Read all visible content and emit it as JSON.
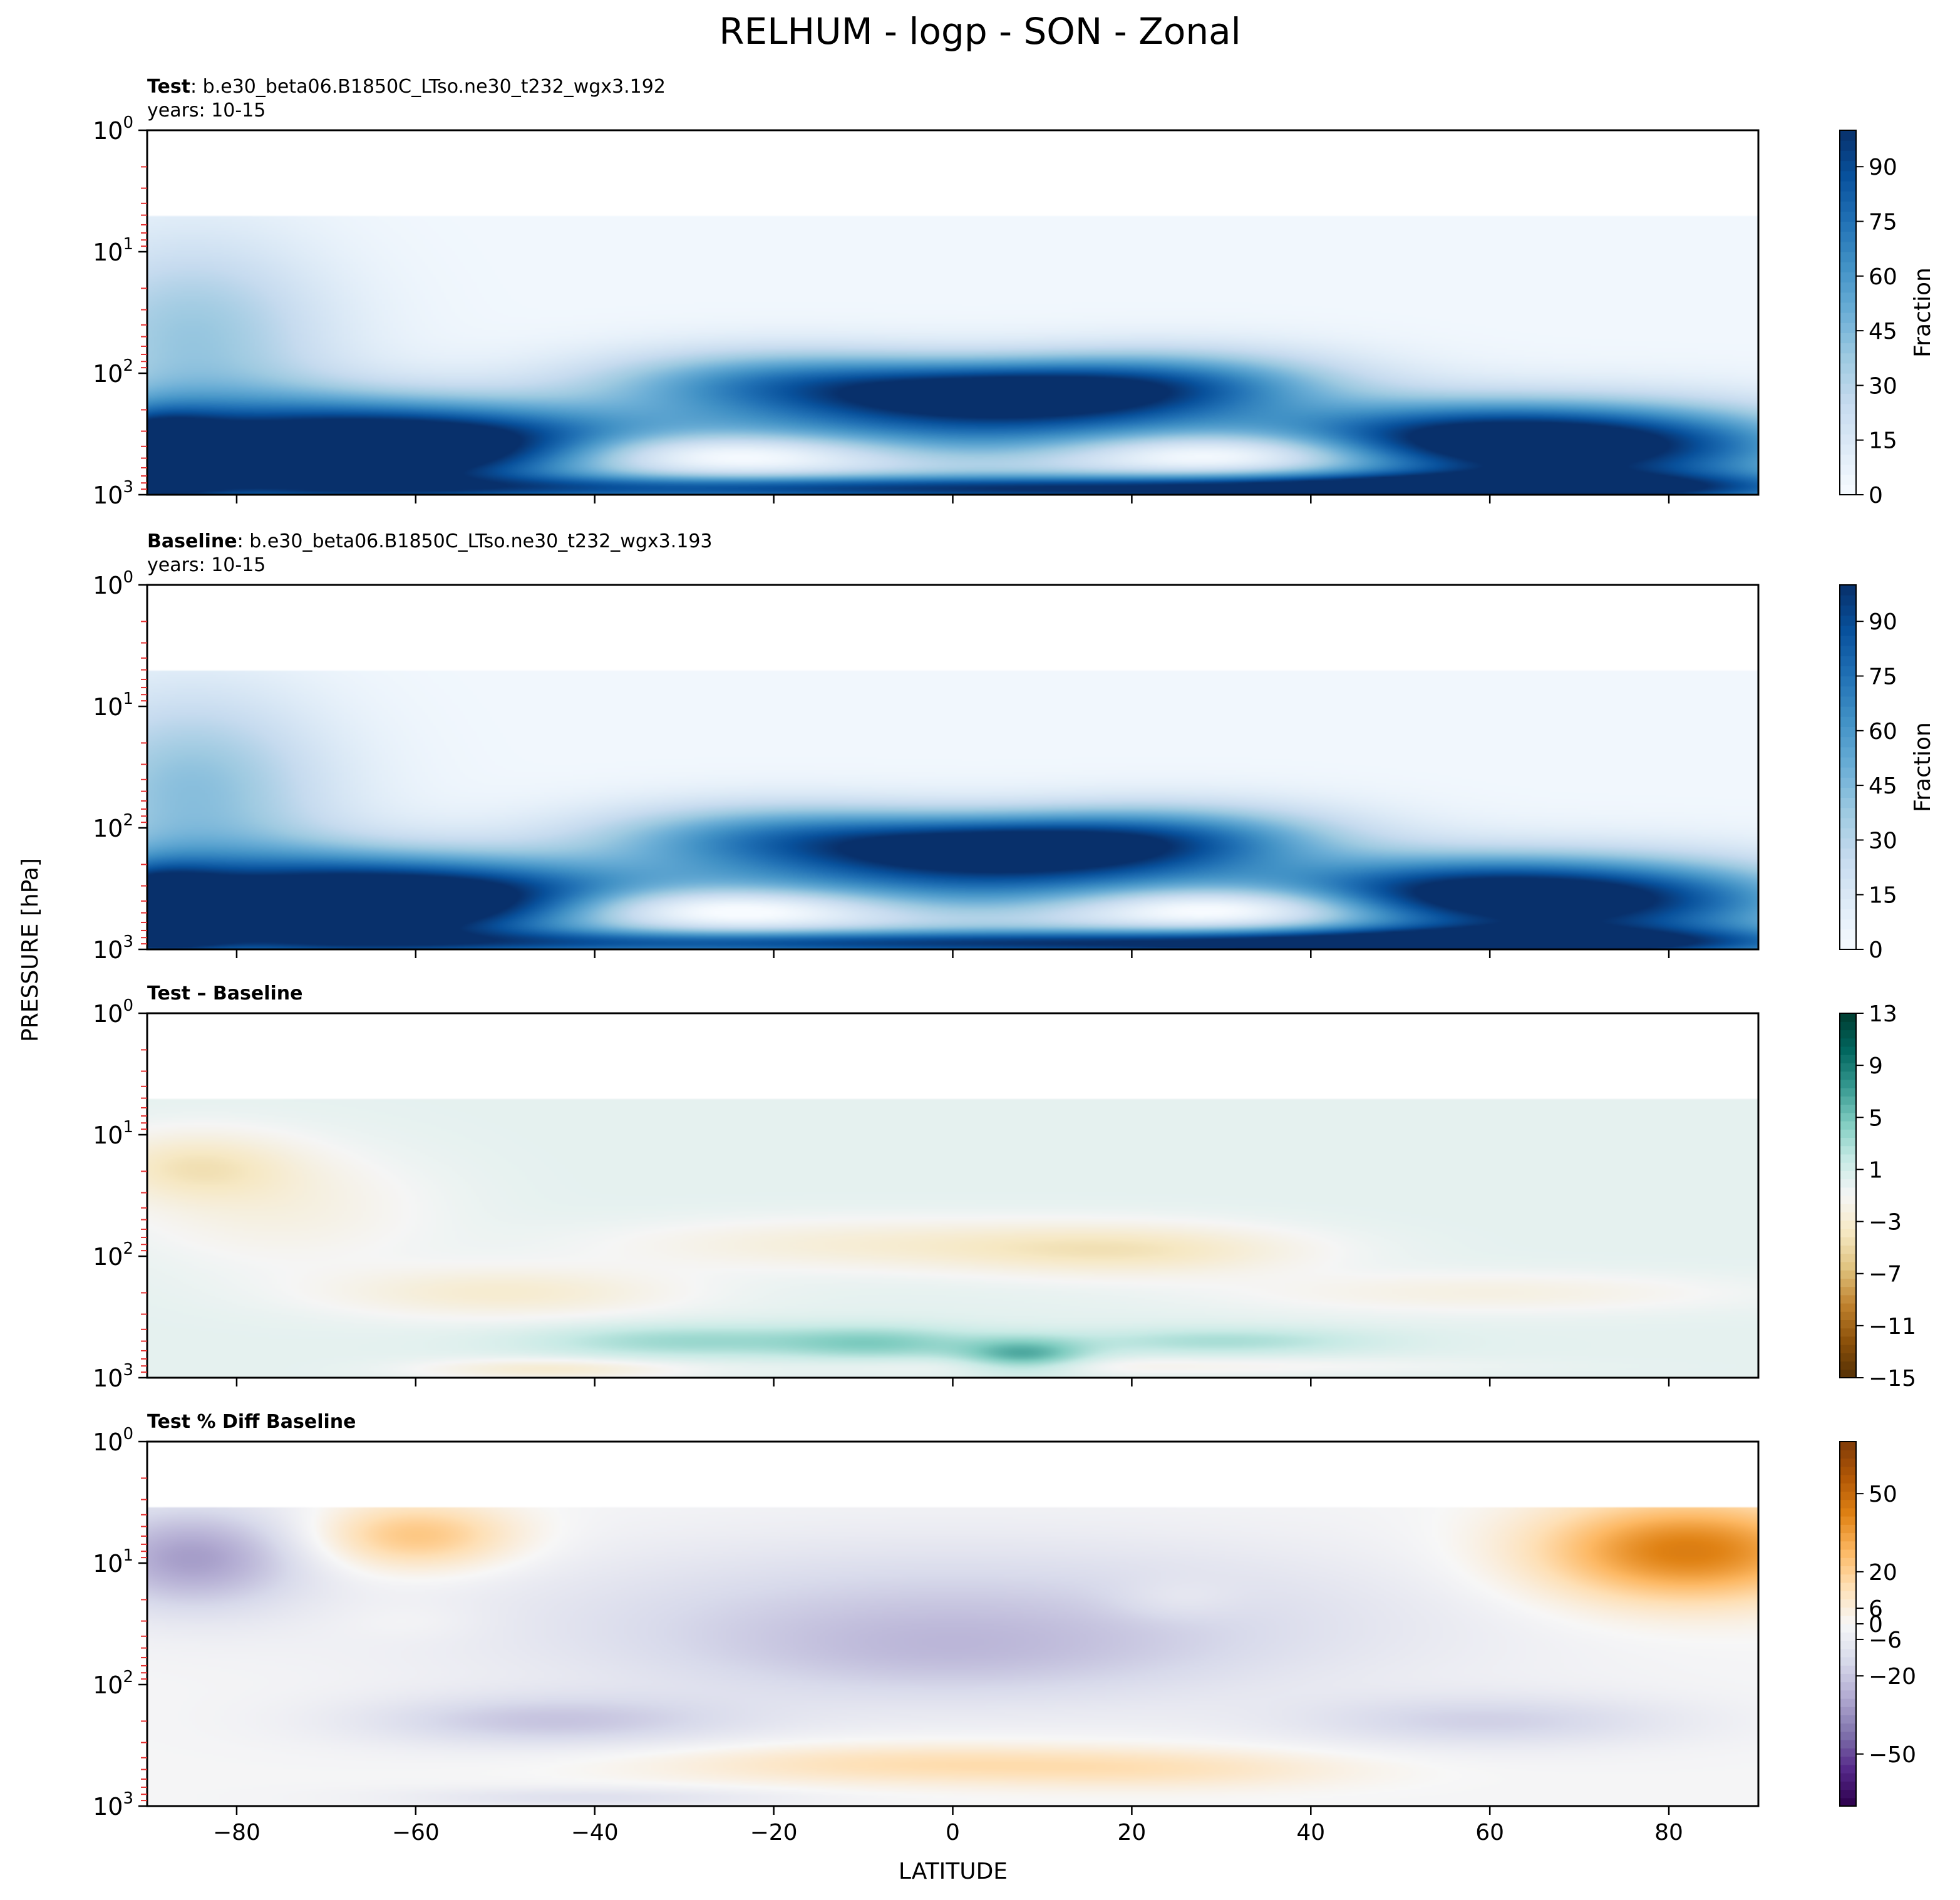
{
  "figure": {
    "title": "RELHUM - logp - SON - Zonal",
    "xlabel": "LATITUDE",
    "ylabel": "PRESSURE [hPa]"
  },
  "chart_data": [
    {
      "type": "heatmap",
      "panel": "test",
      "title_bold": "Test",
      "title_rest": ": b.e30_beta06.B1850C_LTso.ne30_t232_wgx3.192",
      "subtitle": "years: 10-15",
      "colorbar_label": "Fraction",
      "colorbar_ticks": [
        "0",
        "15",
        "30",
        "45",
        "60",
        "75",
        "90"
      ],
      "colorbar_range": [
        0,
        100
      ],
      "colormap": [
        "#f7fbff",
        "#deebf7",
        "#c6dbef",
        "#9ecae1",
        "#6baed6",
        "#4292c6",
        "#2171b5",
        "#08519c",
        "#08306b"
      ],
      "xlim": [
        -90,
        90
      ],
      "ylim_hPa": [
        1000,
        1
      ],
      "y_scale": "log",
      "x_ticks": [
        -80,
        -60,
        -40,
        -20,
        0,
        20,
        40,
        60,
        80
      ],
      "y_ticks": [
        {
          "base": "10",
          "exp": "0"
        },
        {
          "base": "10",
          "exp": "1"
        },
        {
          "base": "10",
          "exp": "2"
        },
        {
          "base": "10",
          "exp": "3"
        }
      ],
      "background_value": 3,
      "data_top_hPa": 5,
      "features": [
        {
          "lat": -90,
          "p": 500,
          "value": 95,
          "sx": 6,
          "sy": 0.25
        },
        {
          "lat": -75,
          "p": 450,
          "value": 85,
          "sx": 14,
          "sy": 0.3
        },
        {
          "lat": -55,
          "p": 400,
          "value": 80,
          "sx": 14,
          "sy": 0.25
        },
        {
          "lat": -85,
          "p": 80,
          "value": 25,
          "sx": 12,
          "sy": 0.55
        },
        {
          "lat": -85,
          "p": 25,
          "value": 15,
          "sx": 10,
          "sy": 0.5
        },
        {
          "lat": 5,
          "p": 150,
          "value": 85,
          "sx": 15,
          "sy": 0.18
        },
        {
          "lat": -20,
          "p": 120,
          "value": 55,
          "sx": 15,
          "sy": 0.2
        },
        {
          "lat": 25,
          "p": 120,
          "value": 55,
          "sx": 14,
          "sy": 0.2
        },
        {
          "lat": -25,
          "p": 450,
          "value": -45,
          "sx": 14,
          "sy": 0.12
        },
        {
          "lat": 30,
          "p": 450,
          "value": -45,
          "sx": 13,
          "sy": 0.12
        },
        {
          "lat": 0,
          "p": 350,
          "value": 55,
          "sx": 35,
          "sy": 0.2
        },
        {
          "lat": 75,
          "p": 400,
          "value": 85,
          "sx": 16,
          "sy": 0.25
        },
        {
          "lat": 55,
          "p": 350,
          "value": 60,
          "sx": 14,
          "sy": 0.22
        },
        {
          "lat": -10,
          "p": 900,
          "value": 80,
          "sx": 45,
          "sy": 0.08
        },
        {
          "lat": 60,
          "p": 900,
          "value": 80,
          "sx": 30,
          "sy": 0.1
        }
      ]
    },
    {
      "type": "heatmap",
      "panel": "baseline",
      "title_bold": "Baseline",
      "title_rest": ": b.e30_beta06.B1850C_LTso.ne30_t232_wgx3.193",
      "subtitle": "years: 10-15",
      "colorbar_label": "Fraction",
      "colorbar_ticks": [
        "0",
        "15",
        "30",
        "45",
        "60",
        "75",
        "90"
      ],
      "colorbar_range": [
        0,
        100
      ],
      "colormap": [
        "#f7fbff",
        "#deebf7",
        "#c6dbef",
        "#9ecae1",
        "#6baed6",
        "#4292c6",
        "#2171b5",
        "#08519c",
        "#08306b"
      ],
      "xlim": [
        -90,
        90
      ],
      "ylim_hPa": [
        1000,
        1
      ],
      "y_scale": "log",
      "x_ticks": [
        -80,
        -60,
        -40,
        -20,
        0,
        20,
        40,
        60,
        80
      ],
      "y_ticks": [
        {
          "base": "10",
          "exp": "0"
        },
        {
          "base": "10",
          "exp": "1"
        },
        {
          "base": "10",
          "exp": "2"
        },
        {
          "base": "10",
          "exp": "3"
        }
      ],
      "background_value": 3,
      "data_top_hPa": 5,
      "features": [
        {
          "lat": -90,
          "p": 500,
          "value": 92,
          "sx": 6,
          "sy": 0.25
        },
        {
          "lat": -75,
          "p": 450,
          "value": 83,
          "sx": 14,
          "sy": 0.3
        },
        {
          "lat": -55,
          "p": 400,
          "value": 80,
          "sx": 14,
          "sy": 0.25
        },
        {
          "lat": -85,
          "p": 80,
          "value": 27,
          "sx": 12,
          "sy": 0.55
        },
        {
          "lat": -85,
          "p": 25,
          "value": 17,
          "sx": 10,
          "sy": 0.5
        },
        {
          "lat": 5,
          "p": 150,
          "value": 85,
          "sx": 15,
          "sy": 0.18
        },
        {
          "lat": -20,
          "p": 120,
          "value": 55,
          "sx": 15,
          "sy": 0.2
        },
        {
          "lat": 25,
          "p": 120,
          "value": 55,
          "sx": 14,
          "sy": 0.2
        },
        {
          "lat": -25,
          "p": 450,
          "value": -48,
          "sx": 14,
          "sy": 0.12
        },
        {
          "lat": 30,
          "p": 450,
          "value": -48,
          "sx": 13,
          "sy": 0.12
        },
        {
          "lat": 0,
          "p": 350,
          "value": 55,
          "sx": 35,
          "sy": 0.2
        },
        {
          "lat": 75,
          "p": 400,
          "value": 80,
          "sx": 16,
          "sy": 0.25
        },
        {
          "lat": 55,
          "p": 350,
          "value": 60,
          "sx": 14,
          "sy": 0.22
        },
        {
          "lat": -10,
          "p": 900,
          "value": 78,
          "sx": 45,
          "sy": 0.08
        },
        {
          "lat": 60,
          "p": 900,
          "value": 78,
          "sx": 30,
          "sy": 0.1
        }
      ]
    },
    {
      "type": "heatmap",
      "panel": "diff",
      "title_bold": "Test – Baseline",
      "title_rest": "",
      "subtitle": "",
      "colorbar_label": "",
      "colorbar_ticks": [
        "-15",
        "-11",
        "-7",
        "-3",
        "1",
        "5",
        "9",
        "13"
      ],
      "colorbar_range": [
        -15,
        13
      ],
      "colormap": [
        "#543005",
        "#8c510a",
        "#bf812d",
        "#dfc27d",
        "#f6e8c3",
        "#f5f5f5",
        "#c7eae5",
        "#80cdc1",
        "#35978f",
        "#01665e",
        "#003c30"
      ],
      "xlim": [
        -90,
        90
      ],
      "ylim_hPa": [
        1000,
        1
      ],
      "y_scale": "log",
      "x_ticks": [
        -80,
        -60,
        -40,
        -20,
        0,
        20,
        40,
        60,
        80
      ],
      "y_ticks": [
        {
          "base": "10",
          "exp": "0"
        },
        {
          "base": "10",
          "exp": "1"
        },
        {
          "base": "10",
          "exp": "2"
        },
        {
          "base": "10",
          "exp": "3"
        }
      ],
      "background_value": 0,
      "data_top_hPa": 5,
      "features": [
        {
          "lat": -85,
          "p": 18,
          "value": -3.5,
          "sx": 8,
          "sy": 0.2
        },
        {
          "lat": -75,
          "p": 40,
          "value": -2,
          "sx": 12,
          "sy": 0.35
        },
        {
          "lat": -50,
          "p": 200,
          "value": -3,
          "sx": 14,
          "sy": 0.15
        },
        {
          "lat": -10,
          "p": 80,
          "value": -2.5,
          "sx": 20,
          "sy": 0.15
        },
        {
          "lat": 20,
          "p": 90,
          "value": -3.5,
          "sx": 14,
          "sy": 0.15
        },
        {
          "lat": 60,
          "p": 200,
          "value": -2,
          "sx": 20,
          "sy": 0.12
        },
        {
          "lat": -30,
          "p": 500,
          "value": 3.5,
          "sx": 12,
          "sy": 0.1
        },
        {
          "lat": -8,
          "p": 520,
          "value": 4,
          "sx": 8,
          "sy": 0.1
        },
        {
          "lat": 8,
          "p": 650,
          "value": 6,
          "sx": 5,
          "sy": 0.1
        },
        {
          "lat": 30,
          "p": 500,
          "value": 3,
          "sx": 12,
          "sy": 0.08
        },
        {
          "lat": -45,
          "p": 850,
          "value": -3,
          "sx": 10,
          "sy": 0.06
        },
        {
          "lat": 20,
          "p": 800,
          "value": -1.5,
          "sx": 25,
          "sy": 0.05
        }
      ]
    },
    {
      "type": "heatmap",
      "panel": "pctdiff",
      "title_bold": "Test % Diff Baseline",
      "title_rest": "",
      "subtitle": "",
      "colorbar_label": "",
      "colorbar_ticks": [
        "-50",
        "-20",
        "-6",
        "0",
        "6",
        "20",
        "50"
      ],
      "colorbar_range": [
        -70,
        70
      ],
      "colormap": [
        "#2d004b",
        "#542788",
        "#8073ac",
        "#b2abd2",
        "#d8daeb",
        "#f7f7f7",
        "#fee0b6",
        "#fdb863",
        "#e08214",
        "#b35806",
        "#7f3b08"
      ],
      "xlim": [
        -90,
        90
      ],
      "ylim_hPa": [
        1000,
        1
      ],
      "y_scale": "log",
      "x_ticks": [
        -80,
        -60,
        -40,
        -20,
        0,
        20,
        40,
        60,
        80
      ],
      "y_ticks": [
        {
          "base": "10",
          "exp": "0"
        },
        {
          "base": "10",
          "exp": "1"
        },
        {
          "base": "10",
          "exp": "2"
        },
        {
          "base": "10",
          "exp": "3"
        }
      ],
      "background_value": -1,
      "data_top_hPa": 3.5,
      "features": [
        {
          "lat": -85,
          "p": 9,
          "value": -30,
          "sx": 9,
          "sy": 0.3
        },
        {
          "lat": -60,
          "p": 6,
          "value": 25,
          "sx": 8,
          "sy": 0.2
        },
        {
          "lat": 0,
          "p": 30,
          "value": -18,
          "sx": 35,
          "sy": 0.45
        },
        {
          "lat": 0,
          "p": 60,
          "value": -8,
          "sx": 20,
          "sy": 0.25
        },
        {
          "lat": 82,
          "p": 8,
          "value": 45,
          "sx": 12,
          "sy": 0.3
        },
        {
          "lat": 25,
          "p": 20,
          "value": 6,
          "sx": 5,
          "sy": 0.12
        },
        {
          "lat": -45,
          "p": 200,
          "value": -18,
          "sx": 15,
          "sy": 0.15
        },
        {
          "lat": 60,
          "p": 200,
          "value": -15,
          "sx": 15,
          "sy": 0.15
        },
        {
          "lat": -5,
          "p": 450,
          "value": 15,
          "sx": 20,
          "sy": 0.12
        },
        {
          "lat": 25,
          "p": 500,
          "value": 10,
          "sx": 15,
          "sy": 0.12
        },
        {
          "lat": -40,
          "p": 850,
          "value": -10,
          "sx": 15,
          "sy": 0.06
        },
        {
          "lat": -60,
          "p": 30,
          "value": 3,
          "sx": 6,
          "sy": 0.12
        }
      ]
    }
  ]
}
